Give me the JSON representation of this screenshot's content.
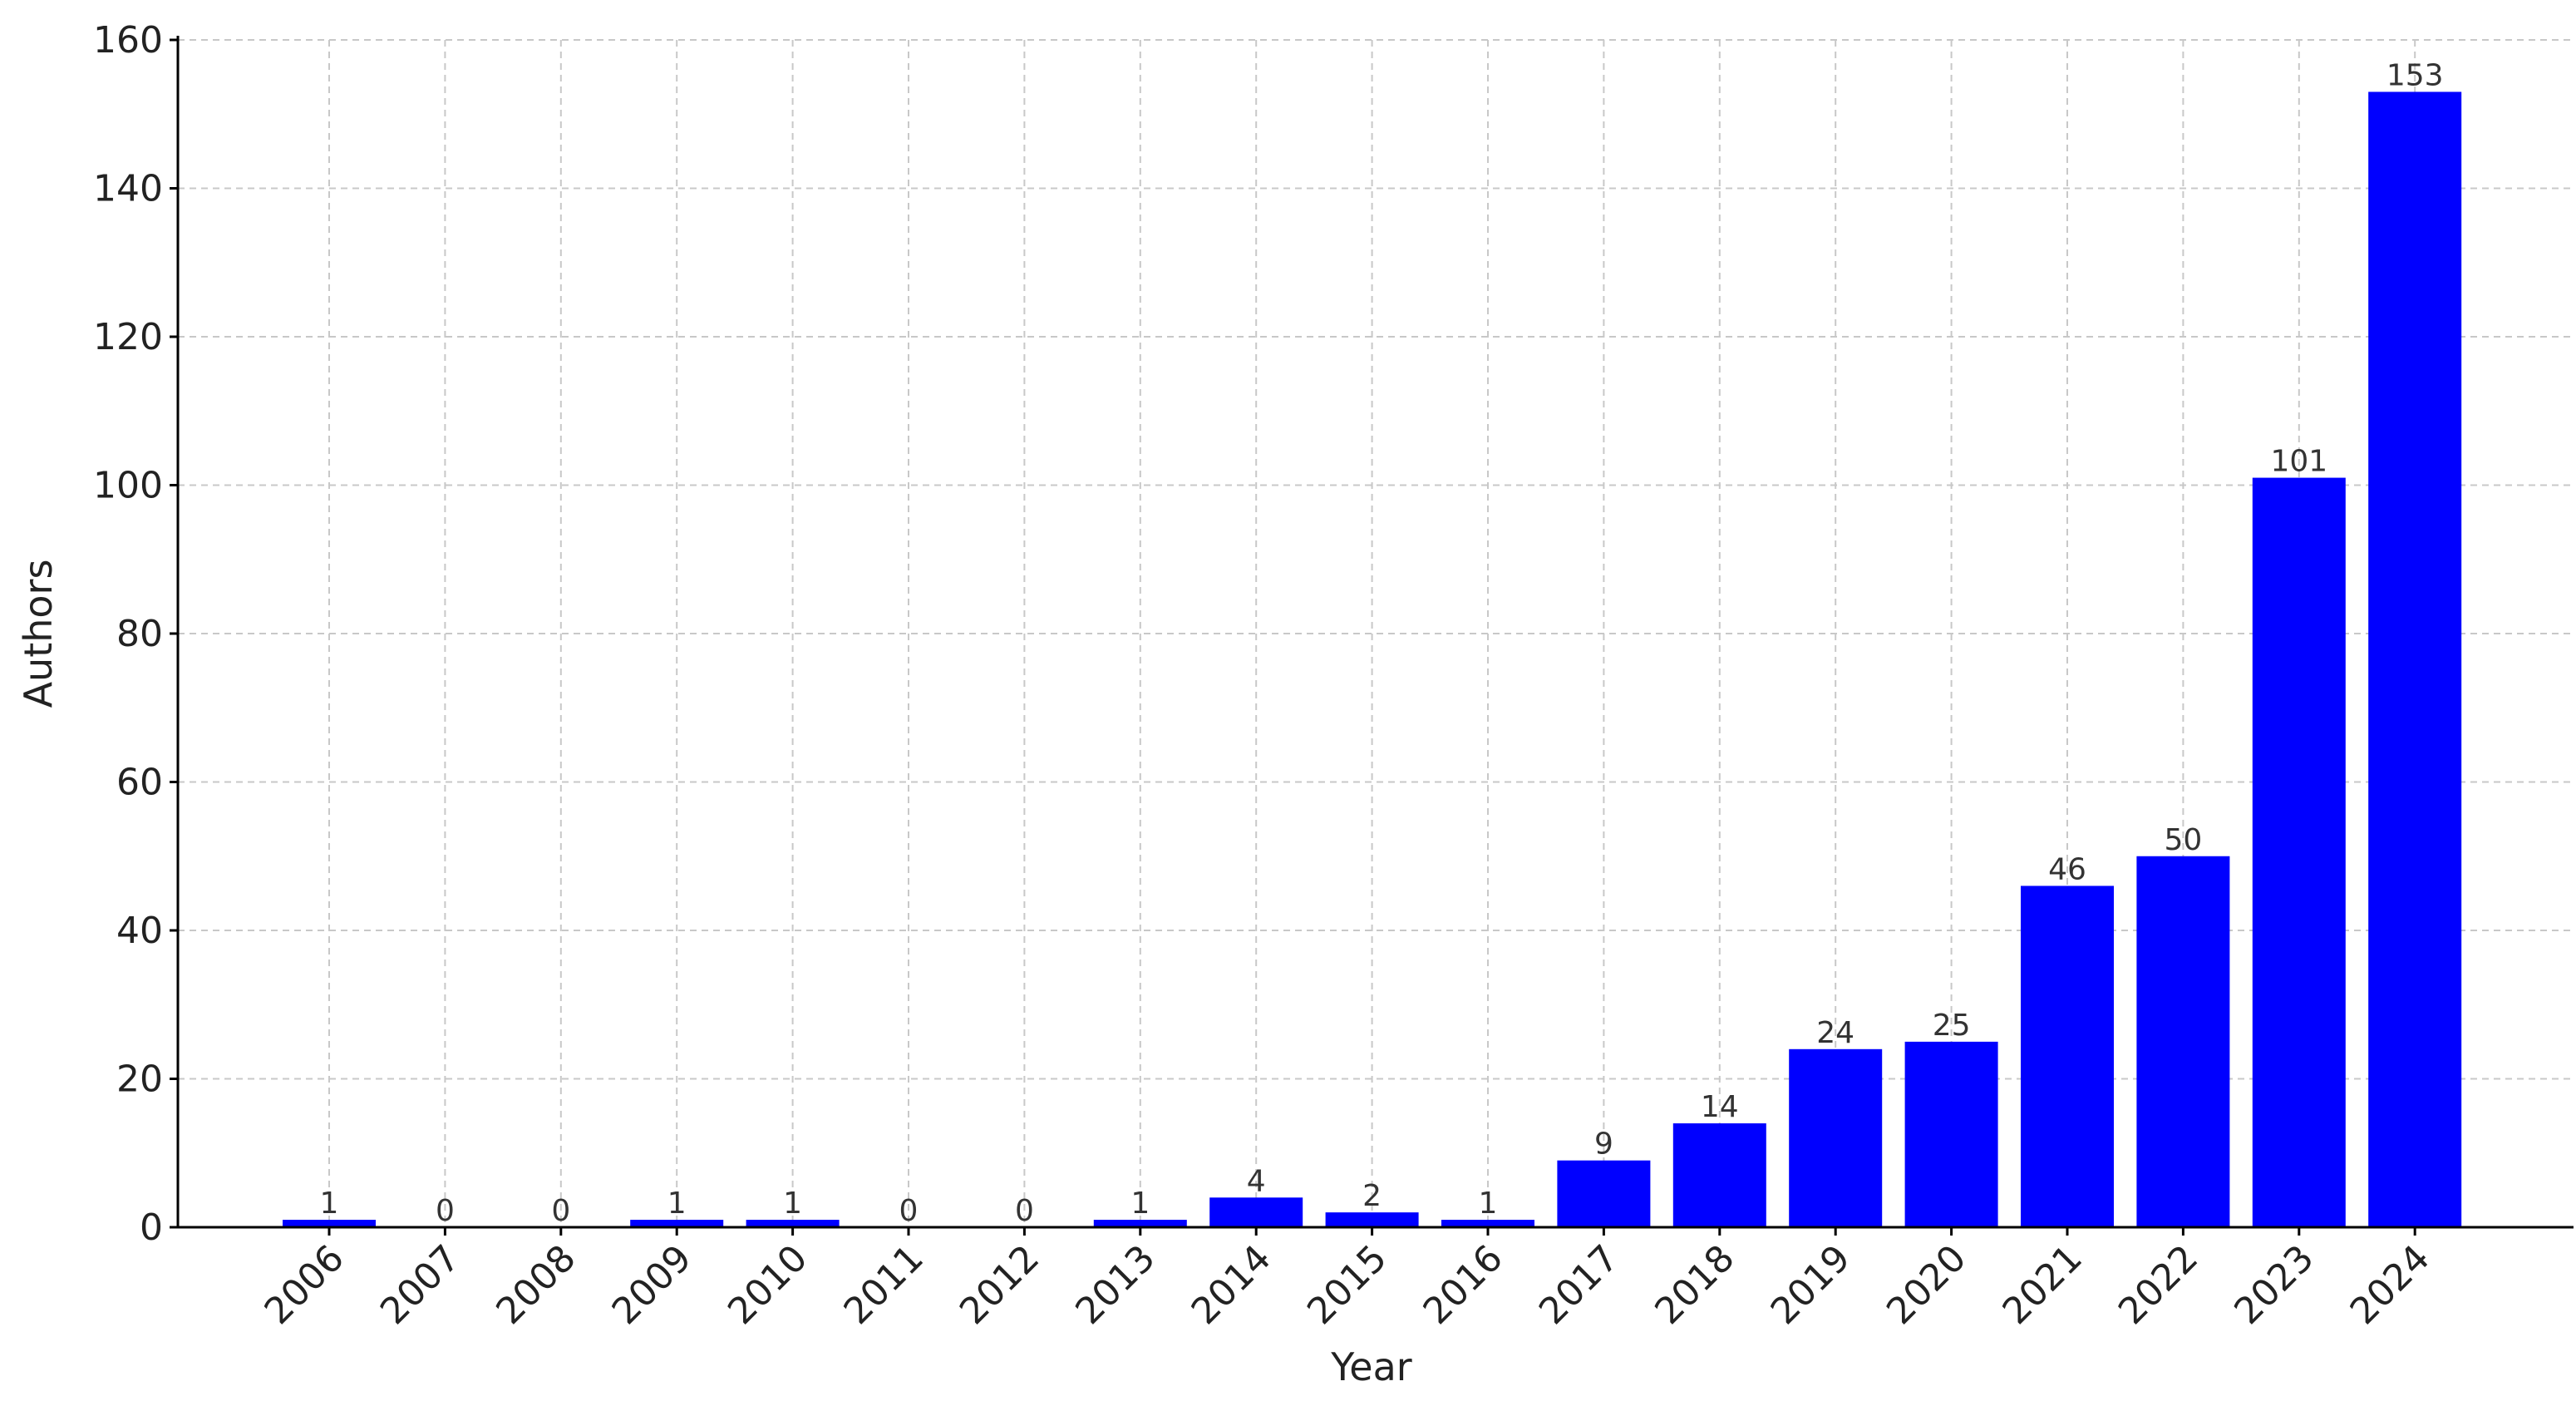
{
  "chart_data": {
    "type": "bar",
    "x_label": "Year",
    "y_label": "Authors",
    "categories": [
      "2006",
      "2007",
      "2008",
      "2009",
      "2010",
      "2011",
      "2012",
      "2013",
      "2014",
      "2015",
      "2016",
      "2017",
      "2018",
      "2019",
      "2020",
      "2021",
      "2022",
      "2023",
      "2024"
    ],
    "values": [
      1,
      0,
      0,
      1,
      1,
      0,
      0,
      1,
      4,
      2,
      1,
      9,
      14,
      24,
      25,
      46,
      50,
      101,
      153
    ],
    "color": "#0000ff",
    "ylim": [
      0,
      160
    ],
    "yticks": [
      0,
      20,
      40,
      60,
      80,
      100,
      120,
      140,
      160
    ],
    "grid": true
  }
}
